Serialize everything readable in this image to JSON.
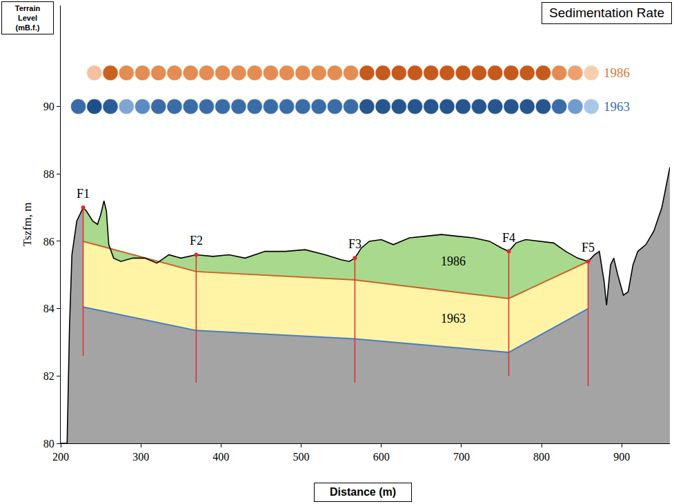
{
  "chart_data": {
    "type": "area",
    "title": "Sedimentation Rate",
    "x_label": "Distance (m)",
    "y_label": "Tszfm, m",
    "y_label_box": "Terrain Level (mB.f.)",
    "xlim": [
      200,
      960
    ],
    "xticks": [
      200,
      300,
      400,
      500,
      600,
      700,
      800,
      900
    ],
    "ylim": [
      80,
      93
    ],
    "yticks": [
      80,
      82,
      84,
      86,
      88,
      90
    ],
    "grid": false,
    "terrain": {
      "color": "#000000",
      "fill": "#a4a4a4",
      "x": [
        200,
        208,
        211,
        214,
        220,
        228,
        232,
        240,
        246,
        250,
        254,
        257,
        260,
        266,
        275,
        290,
        305,
        320,
        335,
        350,
        369,
        390,
        410,
        430,
        455,
        480,
        505,
        530,
        550,
        560,
        567,
        575,
        585,
        600,
        615,
        635,
        655,
        675,
        695,
        715,
        735,
        750,
        759,
        768,
        780,
        800,
        815,
        830,
        845,
        858,
        866,
        872,
        878,
        881,
        886,
        890,
        895,
        902,
        908,
        914,
        920,
        930,
        940,
        950,
        960
      ],
      "values": [
        80,
        80,
        83.5,
        85.6,
        86.6,
        87.0,
        86.9,
        86.6,
        86.5,
        86.8,
        87.2,
        86.9,
        85.9,
        85.5,
        85.4,
        85.5,
        85.5,
        85.35,
        85.6,
        85.5,
        85.6,
        85.55,
        85.6,
        85.5,
        85.7,
        85.7,
        85.75,
        85.6,
        85.45,
        85.4,
        85.5,
        85.8,
        86.0,
        86.05,
        85.9,
        86.1,
        86.15,
        86.2,
        86.15,
        86.1,
        86.0,
        85.8,
        85.7,
        85.95,
        86.05,
        86.0,
        85.95,
        85.7,
        85.5,
        85.4,
        85.6,
        85.7,
        84.8,
        84.1,
        85.3,
        85.5,
        85.0,
        84.4,
        84.5,
        85.3,
        85.7,
        85.9,
        86.3,
        87.0,
        88.2
      ]
    },
    "surfaces": [
      {
        "color": "#4a7cc0",
        "x": [
          228,
          369,
          567,
          759,
          858
        ],
        "values": [
          84.05,
          83.35,
          83.1,
          82.7,
          84.0
        ]
      },
      {
        "color": "#c8622a",
        "x": [
          228,
          369,
          567,
          759,
          858
        ],
        "values": [
          86.0,
          85.1,
          84.85,
          84.3,
          85.4
        ]
      }
    ],
    "layers": [
      {
        "label": "1963",
        "fill": "#fff3a6",
        "x": 690,
        "y": 83.7
      },
      {
        "label": "1986",
        "fill": "#a9d98d",
        "x": 690,
        "y": 85.4
      }
    ],
    "boreholes": {
      "color": "#e02b2b",
      "items": [
        {
          "label": "F1",
          "x": 228,
          "top": 87.0,
          "bottom": 82.6
        },
        {
          "label": "F2",
          "x": 369,
          "top": 85.6,
          "bottom": 81.8
        },
        {
          "label": "F3",
          "x": 567,
          "top": 85.5,
          "bottom": 81.8
        },
        {
          "label": "F4",
          "x": 759,
          "top": 85.7,
          "bottom": 82.0
        },
        {
          "label": "F5",
          "x": 858,
          "top": 85.4,
          "bottom": 81.7
        }
      ]
    },
    "rate_bars": [
      {
        "name": "1986",
        "color": "#d9773a",
        "y": 91,
        "x": [
          242,
          262,
          282,
          302,
          322,
          342,
          362,
          382,
          402,
          422,
          442,
          462,
          482,
          502,
          522,
          542,
          562,
          582,
          602,
          622,
          642,
          662,
          682,
          702,
          722,
          742,
          762,
          782,
          802,
          822,
          842,
          862
        ],
        "colors": [
          "#f4c2a0",
          "#c9621f",
          "#e48c52",
          "#e48c52",
          "#e48c52",
          "#e48c52",
          "#e48c52",
          "#e48c52",
          "#e48c52",
          "#e48c52",
          "#e48c52",
          "#e48c52",
          "#e48c52",
          "#e48c52",
          "#e48c52",
          "#e48c52",
          "#e48c52",
          "#c65a1c",
          "#c65a1c",
          "#c65a1c",
          "#c65a1c",
          "#c65a1c",
          "#c65a1c",
          "#c65a1c",
          "#c65a1c",
          "#c65a1c",
          "#c65a1c",
          "#c65a1c",
          "#c65a1c",
          "#e48c52",
          "#eea070",
          "#f7cfb0"
        ]
      },
      {
        "name": "1963",
        "color": "#3a6fb0",
        "y": 90,
        "x": [
          222,
          242,
          262,
          282,
          302,
          322,
          342,
          362,
          382,
          402,
          422,
          442,
          462,
          482,
          502,
          522,
          542,
          562,
          582,
          602,
          622,
          642,
          662,
          682,
          702,
          722,
          742,
          762,
          782,
          802,
          822,
          842,
          862
        ],
        "colors": [
          "#3a6aa8",
          "#1f4e8c",
          "#2a5b98",
          "#7ea6d2",
          "#5b8bc3",
          "#3c6ca8",
          "#3c6ca8",
          "#3c6ca8",
          "#3c6ca8",
          "#3c6ca8",
          "#3c6ca8",
          "#3c6ca8",
          "#3c6ca8",
          "#3c6ca8",
          "#3c6ca8",
          "#3c6ca8",
          "#3c6ca8",
          "#3c6ca8",
          "#27558f",
          "#27558f",
          "#27558f",
          "#27558f",
          "#27558f",
          "#27558f",
          "#27558f",
          "#27558f",
          "#27558f",
          "#27558f",
          "#27558f",
          "#27558f",
          "#3c6ca8",
          "#6f9bcf",
          "#a9c7e6"
        ]
      }
    ]
  }
}
